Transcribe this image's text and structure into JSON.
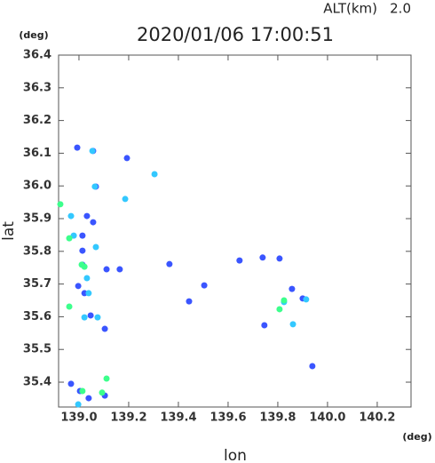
{
  "chart_data": {
    "type": "scatter",
    "title": "2020/01/06 17:00:51",
    "altitude_label": "ALT(km)",
    "altitude": "2.0",
    "x_unit": "(deg)",
    "y_unit": "(deg)",
    "x_label": "lon",
    "y_label": "lat",
    "xlim": [
      138.918,
      140.336
    ],
    "ylim": [
      35.324,
      36.4
    ],
    "xticks": [
      {
        "value": 139,
        "label": "139.0"
      },
      139.2,
      139.4,
      139.6,
      139.8,
      {
        "value": 140,
        "label": "140.0"
      },
      140.2
    ],
    "yticks": [
      35.4,
      35.5,
      35.6,
      35.7,
      35.8,
      35.9,
      {
        "value": 36,
        "label": "36.0"
      },
      36.1,
      36.2,
      36.3,
      36.4
    ],
    "series": [
      {
        "color": "#3a55ff",
        "x": [
          138.993,
          139.057,
          139.068,
          139.032,
          139.057,
          139.014,
          139.014,
          139.014,
          138.997,
          139.022,
          139.047,
          139.104,
          138.968,
          139.004,
          139.039,
          139.104,
          139.939,
          139.857,
          139.9,
          139.646,
          139.364,
          139.443,
          139.193,
          139.739,
          139.807,
          139.746,
          139.504,
          139.111,
          139.164
        ],
        "y": [
          36.117,
          36.107,
          35.998,
          35.908,
          35.889,
          35.848,
          35.802,
          35.759,
          35.694,
          35.672,
          35.604,
          35.563,
          35.395,
          35.373,
          35.351,
          35.359,
          35.449,
          35.685,
          35.656,
          35.772,
          35.761,
          35.647,
          36.085,
          35.781,
          35.778,
          35.574,
          35.696,
          35.745,
          35.745
        ]
      },
      {
        "color": "#33c8ff",
        "x": [
          139.054,
          139.064,
          138.968,
          138.979,
          139.068,
          139.032,
          139.039,
          139.825,
          139.861,
          139.914,
          139.304,
          139.186,
          139.022,
          138.997,
          139.075
        ],
        "y": [
          36.107,
          35.998,
          35.908,
          35.848,
          35.813,
          35.718,
          35.672,
          35.645,
          35.577,
          35.653,
          36.036,
          35.96,
          35.598,
          35.332,
          35.598
        ]
      },
      {
        "color": "#3cff8c",
        "x": [
          138.925,
          138.961,
          139.011,
          139.022,
          139.014,
          139.111,
          139.093,
          139.807,
          139.825,
          138.961
        ],
        "y": [
          35.944,
          35.84,
          35.759,
          35.753,
          35.373,
          35.411,
          35.368,
          35.623,
          35.65,
          35.631
        ]
      }
    ]
  }
}
